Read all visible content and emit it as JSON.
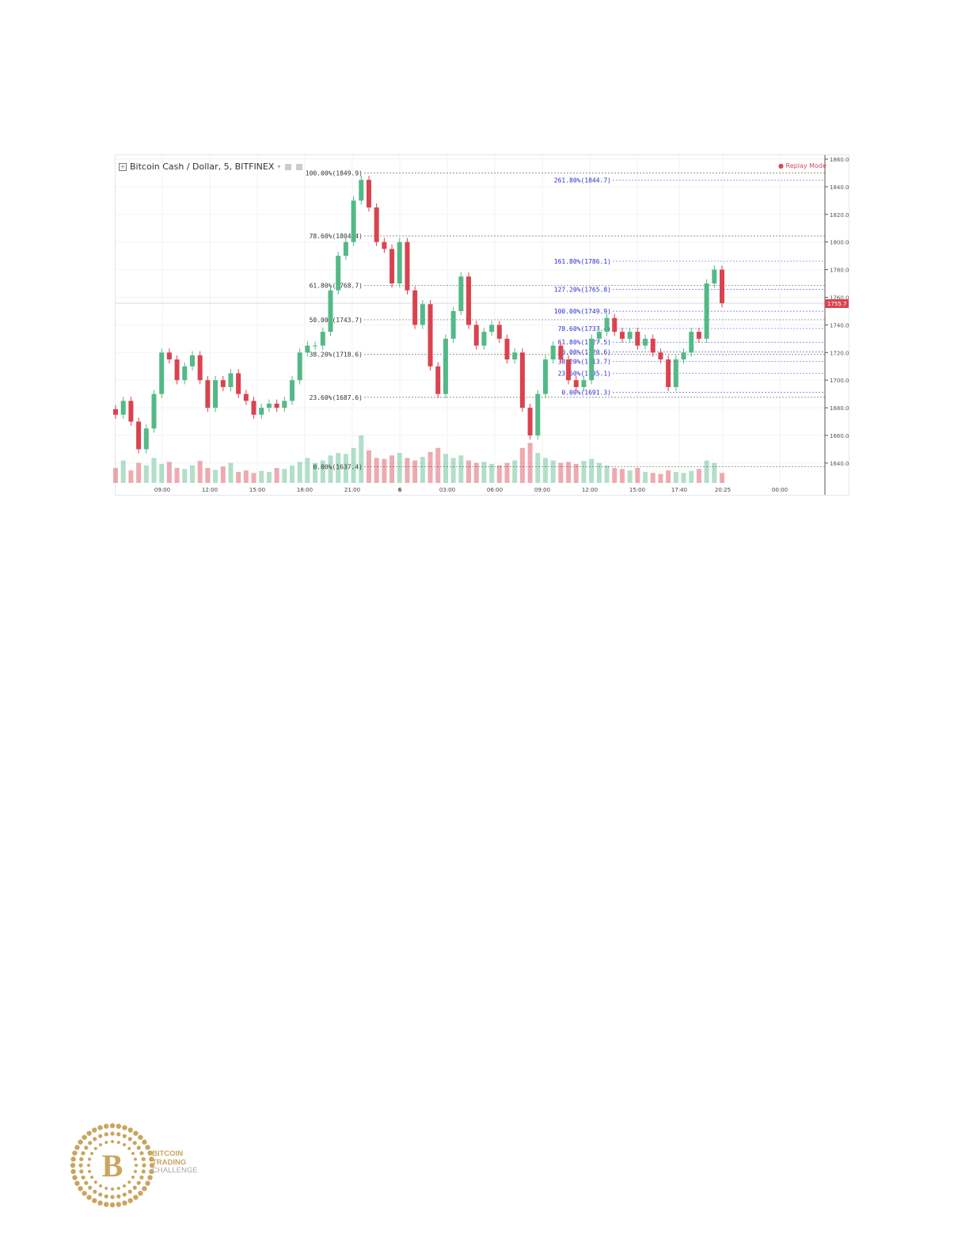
{
  "chart_header": {
    "symbol": "Bitcoin Cash / Dollar, 5, BITFINEX",
    "replay_label": "Replay Mode"
  },
  "colors": {
    "up": "#53b987",
    "down": "#d9434f",
    "fib_left": "#333333",
    "fib_right": "#2b2bd6",
    "price_tag": "#d9434f",
    "replay": "#e0445a",
    "logo_gold": "#c9a560"
  },
  "chart_data": {
    "type": "candlestick",
    "ylim": [
      1630,
      1862
    ],
    "yticks": [
      1640,
      1660,
      1680,
      1700,
      1720,
      1740,
      1760,
      1780,
      1800,
      1820,
      1840,
      1860
    ],
    "xtick_labels": [
      "09:00",
      "12:00",
      "15:00",
      "18:00",
      "21:00",
      "6",
      "03:00",
      "06:00",
      "09:00",
      "12:00",
      "15:00",
      "17:40",
      "20:25",
      "00:00"
    ],
    "current_price": 1755.7,
    "closes": [
      1675,
      1685,
      1670,
      1650,
      1665,
      1690,
      1720,
      1715,
      1700,
      1710,
      1718,
      1700,
      1680,
      1700,
      1695,
      1705,
      1690,
      1685,
      1675,
      1680,
      1683,
      1680,
      1685,
      1700,
      1720,
      1725,
      1725,
      1735,
      1765,
      1790,
      1800,
      1830,
      1845,
      1825,
      1800,
      1795,
      1770,
      1800,
      1765,
      1740,
      1755,
      1710,
      1690,
      1730,
      1750,
      1775,
      1740,
      1725,
      1735,
      1740,
      1730,
      1715,
      1720,
      1680,
      1660,
      1690,
      1715,
      1725,
      1715,
      1700,
      1695,
      1700,
      1730,
      1735,
      1745,
      1735,
      1730,
      1735,
      1725,
      1730,
      1720,
      1715,
      1695,
      1715,
      1720,
      1735,
      1730,
      1770,
      1780,
      1755.7
    ],
    "volumes": [
      30,
      45,
      25,
      40,
      35,
      50,
      38,
      42,
      30,
      28,
      35,
      44,
      30,
      26,
      33,
      40,
      22,
      25,
      20,
      24,
      22,
      30,
      28,
      35,
      42,
      50,
      40,
      45,
      55,
      60,
      58,
      70,
      95,
      65,
      50,
      48,
      55,
      60,
      50,
      45,
      52,
      62,
      70,
      58,
      50,
      55,
      45,
      40,
      42,
      38,
      35,
      40,
      45,
      70,
      80,
      60,
      50,
      45,
      40,
      42,
      38,
      44,
      48,
      40,
      35,
      30,
      28,
      25,
      30,
      22,
      20,
      18,
      25,
      22,
      20,
      24,
      28,
      45,
      40,
      20
    ],
    "fib_retracement_1": {
      "levels": [
        {
          "label": "100.00%(1849.9)",
          "price": 1849.9
        },
        {
          "label": "78.60%(1804.4)",
          "price": 1804.4
        },
        {
          "label": "61.80%(1768.7)",
          "price": 1768.7
        },
        {
          "label": "50.00%(1743.7)",
          "price": 1743.7
        },
        {
          "label": "38.20%(1718.6)",
          "price": 1718.6
        },
        {
          "label": "23.60%(1687.6)",
          "price": 1687.6
        },
        {
          "label": "0.00%(1637.4)",
          "price": 1637.4
        }
      ]
    },
    "fib_retracement_2": {
      "levels": [
        {
          "label": "261.80%(1844.7)",
          "price": 1844.7
        },
        {
          "label": "161.80%(1786.1)",
          "price": 1786.1
        },
        {
          "label": "127.20%(1765.8)",
          "price": 1765.8
        },
        {
          "label": "100.00%(1749.9)",
          "price": 1749.9
        },
        {
          "label": "78.60%(1737.4)",
          "price": 1737.4
        },
        {
          "label": "61.80%(1727.5)",
          "price": 1727.5
        },
        {
          "label": "50.00%(1720.6)",
          "price": 1720.6
        },
        {
          "label": "38.20%(1713.7)",
          "price": 1713.7
        },
        {
          "label": "23.60%(1705.1)",
          "price": 1705.1
        },
        {
          "label": "0.00%(1691.3)",
          "price": 1691.3
        }
      ]
    }
  },
  "logo": {
    "line1": "BITCOIN",
    "line2": "TRADING",
    "line3": "CHALLENGE"
  }
}
